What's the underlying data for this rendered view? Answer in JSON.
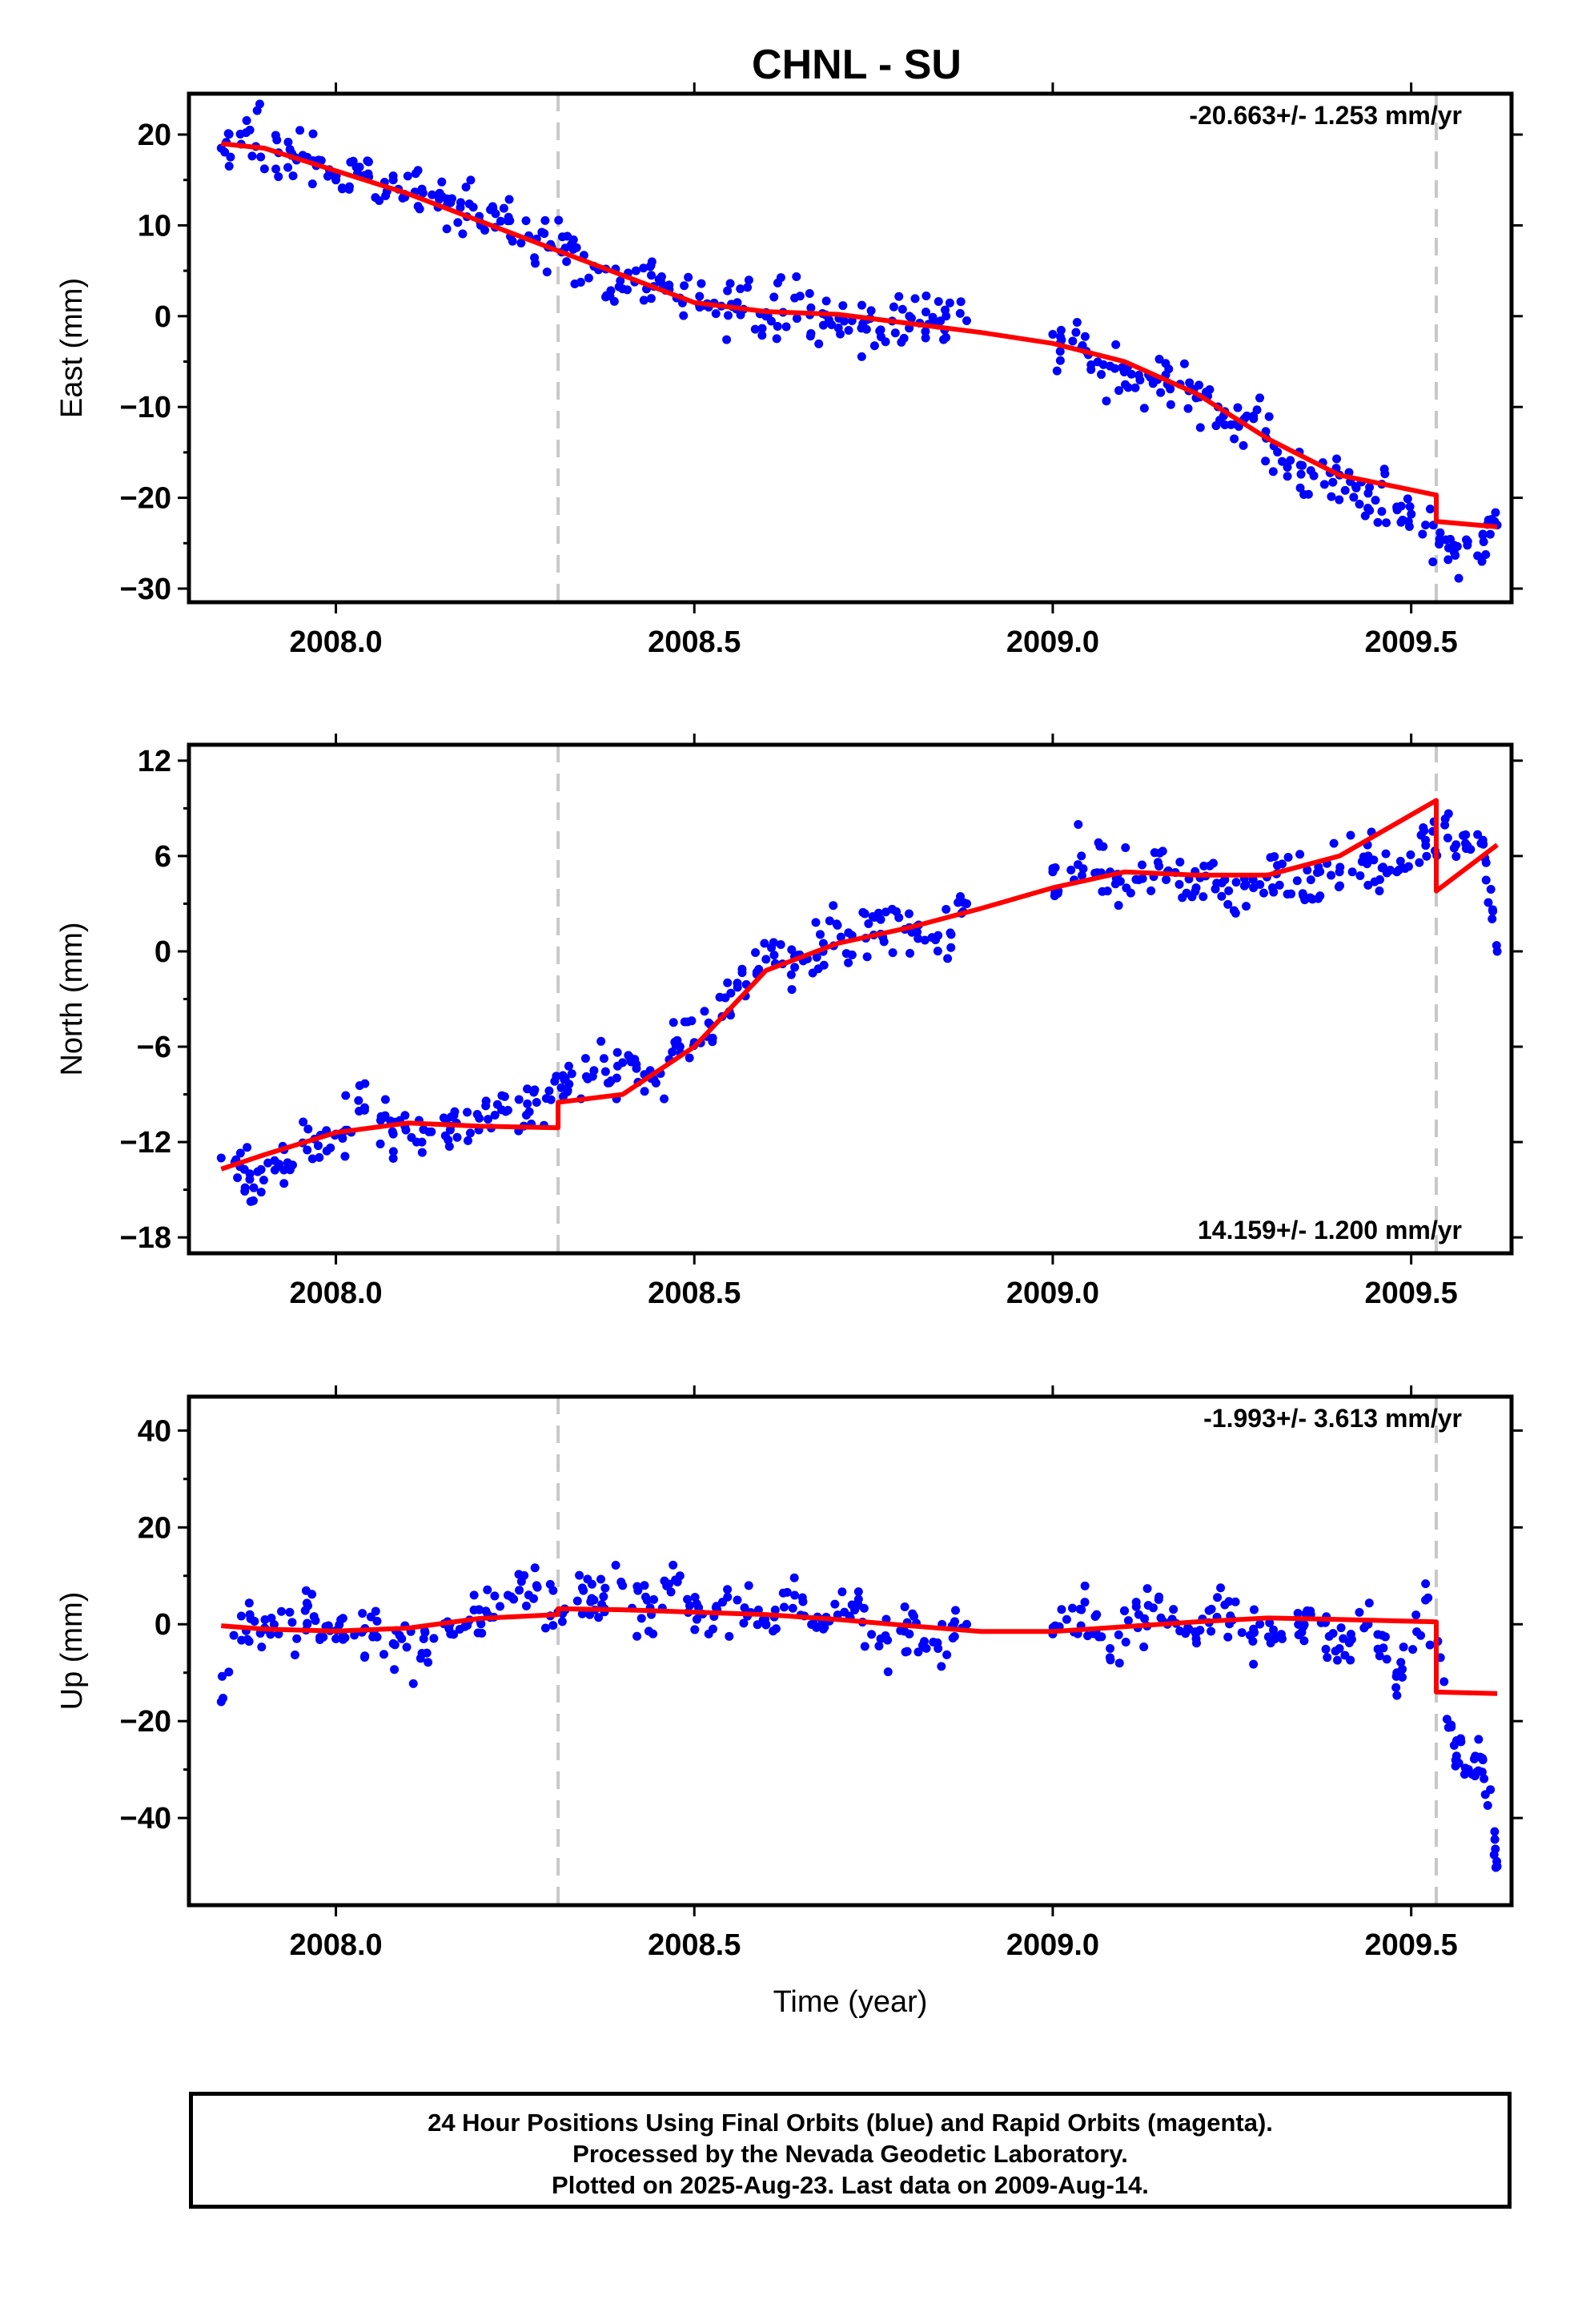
{
  "title": "CHNL - SU",
  "xlabel": "Time (year)",
  "footer": {
    "line1": "24 Hour Positions Using Final Orbits (blue) and Rapid Orbits (magenta).",
    "line2": "Processed by the Nevada Geodetic Laboratory.",
    "line3": "Plotted on 2025-Aug-23. Last data on 2009-Aug-14."
  },
  "colors": {
    "points": "#0000ff",
    "model": "#ff0000",
    "break_line": "#c8c8c8",
    "frame": "#000000"
  },
  "chart_data": [
    {
      "type": "scatter",
      "ylabel": "East (mm)",
      "rate_label": "-20.663+/- 1.253 mm/yr",
      "rate_position": "top-right",
      "xlim": [
        2007.795,
        2009.64
      ],
      "ylim": [
        -31.5,
        24.5
      ],
      "xticks": [
        2008.0,
        2008.5,
        2009.0,
        2009.5
      ],
      "xtick_labels": [
        "2008.0",
        "2008.5",
        "2009.0",
        "2009.5"
      ],
      "yticks": [
        20,
        10,
        0,
        -10,
        -20,
        -30
      ],
      "ytick_labels": [
        "20",
        "10",
        "0",
        "−10",
        "−20",
        "−30"
      ],
      "breaks": [
        2008.31,
        2009.535
      ],
      "series": [
        {
          "name": "",
          "kind": "points",
          "x": [
            2007.84,
            2007.88,
            2007.92,
            2007.96,
            2008.0,
            2008.04,
            2008.08,
            2008.12,
            2008.16,
            2008.2,
            2008.24,
            2008.28,
            2008.32,
            2008.36,
            2008.4,
            2008.44,
            2008.48,
            2008.52,
            2008.56,
            2008.6,
            2008.64,
            2008.68,
            2008.72,
            2008.76,
            2008.8,
            2008.84,
            2008.88,
            2009.0,
            2009.04,
            2009.08,
            2009.12,
            2009.16,
            2009.2,
            2009.24,
            2009.28,
            2009.32,
            2009.36,
            2009.4,
            2009.44,
            2009.48,
            2009.52,
            2009.56,
            2009.6,
            2009.62
          ],
          "y": [
            18.5,
            20.5,
            18,
            17.5,
            15,
            15.5,
            15,
            14,
            12.5,
            11,
            10.5,
            8.5,
            7.5,
            5.5,
            3,
            4.5,
            2,
            1,
            1.5,
            0,
            2,
            -1,
            -0.5,
            -1.5,
            0,
            -1,
            -0.5,
            -2,
            -3.5,
            -5.5,
            -6.5,
            -7.5,
            -9,
            -10.5,
            -11,
            -16,
            -17,
            -17.5,
            -19.5,
            -21,
            -23,
            -26,
            -24,
            -23
          ]
        },
        {
          "name": "",
          "kind": "model",
          "x": [
            2007.84,
            2007.9,
            2008.0,
            2008.1,
            2008.2,
            2008.31,
            2008.4,
            2008.5,
            2008.6,
            2008.7,
            2008.8,
            2008.9,
            2009.0,
            2009.1,
            2009.2,
            2009.3,
            2009.4,
            2009.535,
            2009.535,
            2009.62
          ],
          "y": [
            19,
            18.5,
            16,
            13.5,
            10.5,
            7.2,
            4.5,
            1.5,
            0.5,
            0.2,
            -0.8,
            -1.8,
            -3,
            -5,
            -8.5,
            -13.5,
            -17.5,
            -19.7,
            -22.6,
            -23.2
          ]
        }
      ]
    },
    {
      "type": "scatter",
      "ylabel": "North (mm)",
      "rate_label": "14.159+/- 1.200 mm/yr",
      "rate_position": "bottom-right",
      "xlim": [
        2007.795,
        2009.64
      ],
      "ylim": [
        -19,
        13
      ],
      "xticks": [
        2008.0,
        2008.5,
        2009.0,
        2009.5
      ],
      "xtick_labels": [
        "2008.0",
        "2008.5",
        "2009.0",
        "2009.5"
      ],
      "yticks": [
        12,
        6,
        0,
        -6,
        -12,
        -18
      ],
      "ytick_labels": [
        "12",
        "6",
        "0",
        "−6",
        "−12",
        "−18"
      ],
      "breaks": [
        2008.31,
        2009.535
      ],
      "series": [
        {
          "name": "",
          "kind": "points",
          "x": [
            2007.84,
            2007.88,
            2007.92,
            2007.96,
            2008.0,
            2008.04,
            2008.08,
            2008.12,
            2008.16,
            2008.2,
            2008.24,
            2008.28,
            2008.32,
            2008.36,
            2008.4,
            2008.44,
            2008.48,
            2008.52,
            2008.56,
            2008.6,
            2008.64,
            2008.68,
            2008.72,
            2008.76,
            2008.8,
            2008.84,
            2008.88,
            2009.0,
            2009.04,
            2009.08,
            2009.12,
            2009.16,
            2009.2,
            2009.24,
            2009.28,
            2009.32,
            2009.36,
            2009.4,
            2009.44,
            2009.48,
            2009.52,
            2009.56,
            2009.6,
            2009.62
          ],
          "y": [
            -13,
            -14,
            -13.5,
            -12.5,
            -11.5,
            -10,
            -11.5,
            -12,
            -11,
            -10.5,
            -10,
            -9.5,
            -8,
            -7.5,
            -7,
            -8,
            -6,
            -4.5,
            -2,
            -0.5,
            -1,
            0.5,
            1,
            2,
            1.5,
            1,
            3,
            5,
            6,
            5,
            4.5,
            5,
            4,
            4.5,
            4,
            5.5,
            4.5,
            5,
            6,
            5,
            7,
            6.5,
            7,
            0
          ]
        },
        {
          "name": "",
          "kind": "model",
          "x": [
            2007.84,
            2007.9,
            2008.0,
            2008.1,
            2008.2,
            2008.31,
            2008.31,
            2008.4,
            2008.5,
            2008.6,
            2008.7,
            2008.8,
            2008.9,
            2009.0,
            2009.1,
            2009.2,
            2009.3,
            2009.4,
            2009.535,
            2009.535,
            2009.62
          ],
          "y": [
            -13.7,
            -12.8,
            -11.4,
            -10.8,
            -11,
            -11.1,
            -9.5,
            -9,
            -6,
            -1.2,
            0.5,
            1.5,
            2.7,
            4,
            5,
            4.8,
            4.8,
            6,
            9.5,
            3.8,
            6.7
          ]
        }
      ]
    },
    {
      "type": "scatter",
      "ylabel": "Up (mm)",
      "rate_label": "-1.993+/- 3.613 mm/yr",
      "rate_position": "top-right",
      "xlim": [
        2007.795,
        2009.64
      ],
      "ylim": [
        -58,
        47
      ],
      "xticks": [
        2008.0,
        2008.5,
        2009.0,
        2009.5
      ],
      "xtick_labels": [
        "2008.0",
        "2008.5",
        "2009.0",
        "2009.5"
      ],
      "yticks": [
        40,
        20,
        0,
        -20,
        -40
      ],
      "ytick_labels": [
        "40",
        "20",
        "0",
        "−20",
        "−40"
      ],
      "breaks": [
        2008.31,
        2009.535
      ],
      "series": [
        {
          "name": "",
          "kind": "points",
          "x": [
            2007.84,
            2007.88,
            2007.92,
            2007.96,
            2008.0,
            2008.04,
            2008.08,
            2008.12,
            2008.16,
            2008.2,
            2008.24,
            2008.28,
            2008.32,
            2008.36,
            2008.4,
            2008.44,
            2008.48,
            2008.52,
            2008.56,
            2008.6,
            2008.64,
            2008.68,
            2008.72,
            2008.76,
            2008.8,
            2008.84,
            2008.88,
            2009.0,
            2009.04,
            2009.08,
            2009.12,
            2009.16,
            2009.2,
            2009.24,
            2009.28,
            2009.32,
            2009.36,
            2009.4,
            2009.44,
            2009.48,
            2009.52,
            2009.56,
            2009.58,
            2009.6,
            2009.62
          ],
          "y": [
            -16,
            2,
            -2,
            0,
            -3,
            -1,
            -4,
            -6,
            -2,
            3,
            6,
            8,
            3,
            5,
            8,
            2,
            10,
            -2,
            5,
            0,
            6,
            -1,
            4,
            -3,
            -2,
            -5,
            0,
            -2,
            3,
            -5,
            2,
            0,
            -3,
            4,
            -1,
            -3,
            2,
            -5,
            0,
            -10,
            5,
            -25,
            -30,
            -28,
            -50
          ]
        },
        {
          "name": "",
          "kind": "model",
          "x": [
            2007.84,
            2007.9,
            2008.0,
            2008.1,
            2008.2,
            2008.31,
            2008.31,
            2008.4,
            2008.5,
            2008.6,
            2008.7,
            2008.8,
            2008.9,
            2009.0,
            2009.1,
            2009.2,
            2009.3,
            2009.4,
            2009.535,
            2009.535,
            2009.62
          ],
          "y": [
            -0.3,
            -1,
            -1.4,
            -0.8,
            1.2,
            2,
            3.2,
            3,
            2.5,
            2,
            1,
            -0.3,
            -1.5,
            -1.5,
            -0.5,
            0.5,
            1.3,
            1,
            0.5,
            -14,
            -14.3
          ]
        }
      ]
    }
  ]
}
